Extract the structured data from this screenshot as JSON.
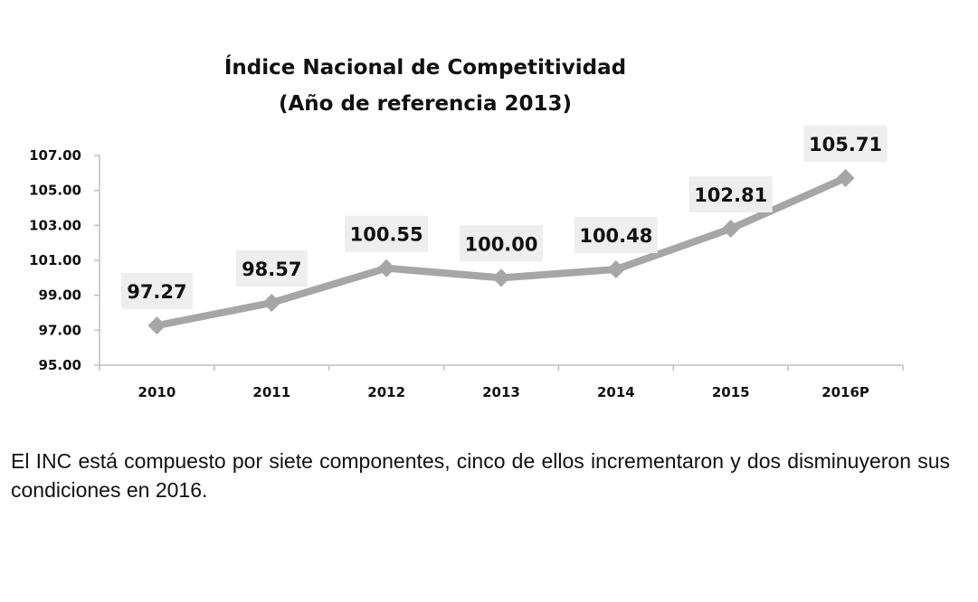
{
  "chart_data": {
    "type": "line",
    "title": "Índice Nacional de Competitividad",
    "subtitle": "(Año de referencia 2013)",
    "categories": [
      "2010",
      "2011",
      "2012",
      "2013",
      "2014",
      "2015",
      "2016P"
    ],
    "values": [
      97.27,
      98.57,
      100.55,
      100.0,
      100.48,
      102.81,
      105.71
    ],
    "data_labels": [
      "97.27",
      "98.57",
      "100.55",
      "100.00",
      "100.48",
      "102.81",
      "105.71"
    ],
    "ylim": [
      95,
      107
    ],
    "yticks": [
      "95.00",
      "97.00",
      "99.00",
      "101.00",
      "103.00",
      "105.00",
      "107.00"
    ],
    "grid": false,
    "legend": "none",
    "colors": {
      "line": "#a6a6a6",
      "label_bg": "#eeeeee",
      "axis": "#bfbfbf"
    }
  },
  "paragraph": "El INC está compuesto por siete componentes, cinco de ellos incrementaron y dos disminuyeron sus condiciones en 2016."
}
